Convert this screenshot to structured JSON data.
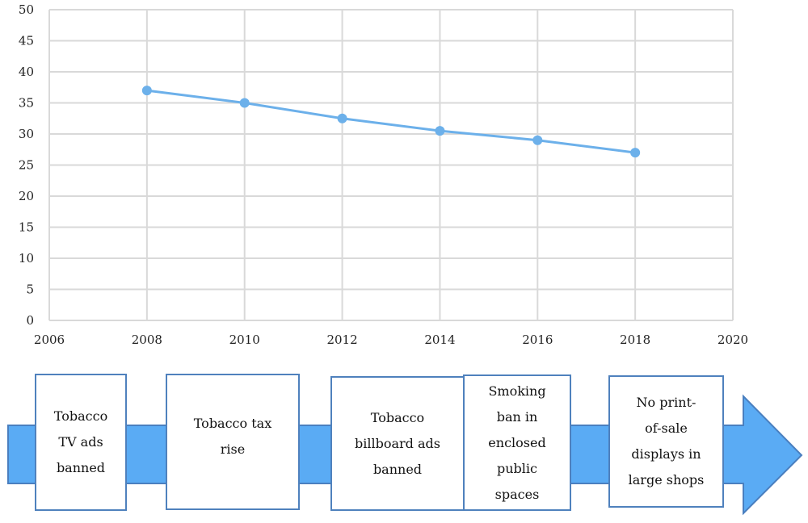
{
  "chart_data": {
    "type": "line",
    "title": "",
    "xlabel": "",
    "ylabel": "",
    "xlim": [
      2006,
      2020
    ],
    "ylim": [
      0,
      50
    ],
    "x_ticks": [
      "2006",
      "2008",
      "2010",
      "2012",
      "2014",
      "2016",
      "2018",
      "2020"
    ],
    "y_ticks": [
      "0",
      "5",
      "10",
      "15",
      "20",
      "25",
      "30",
      "35",
      "40",
      "45",
      "50"
    ],
    "grid": true,
    "series": [
      {
        "x": [
          2008,
          2010,
          2012,
          2014,
          2016,
          2018
        ],
        "values": [
          37,
          35,
          32.5,
          30.5,
          29,
          27
        ]
      }
    ]
  },
  "timeline": {
    "events": [
      {
        "label": "Tobacco\nTV ads\nbanned"
      },
      {
        "label": "Tobacco tax\nrise"
      },
      {
        "label": "Tobacco\nbillboard ads\nbanned"
      },
      {
        "label": "Smoking\nban in\nenclosed\npublic\nspaces"
      },
      {
        "label": "No print-\nof-sale\ndisplays in\nlarge shops"
      }
    ]
  },
  "colors": {
    "line": "#6cb0ea",
    "marker": "#6cb0ea",
    "grid": "#d9d9d9",
    "arrow_fill": "#5aabf4",
    "arrow_border": "#4a7fbf",
    "box_border": "#4f81bd"
  }
}
